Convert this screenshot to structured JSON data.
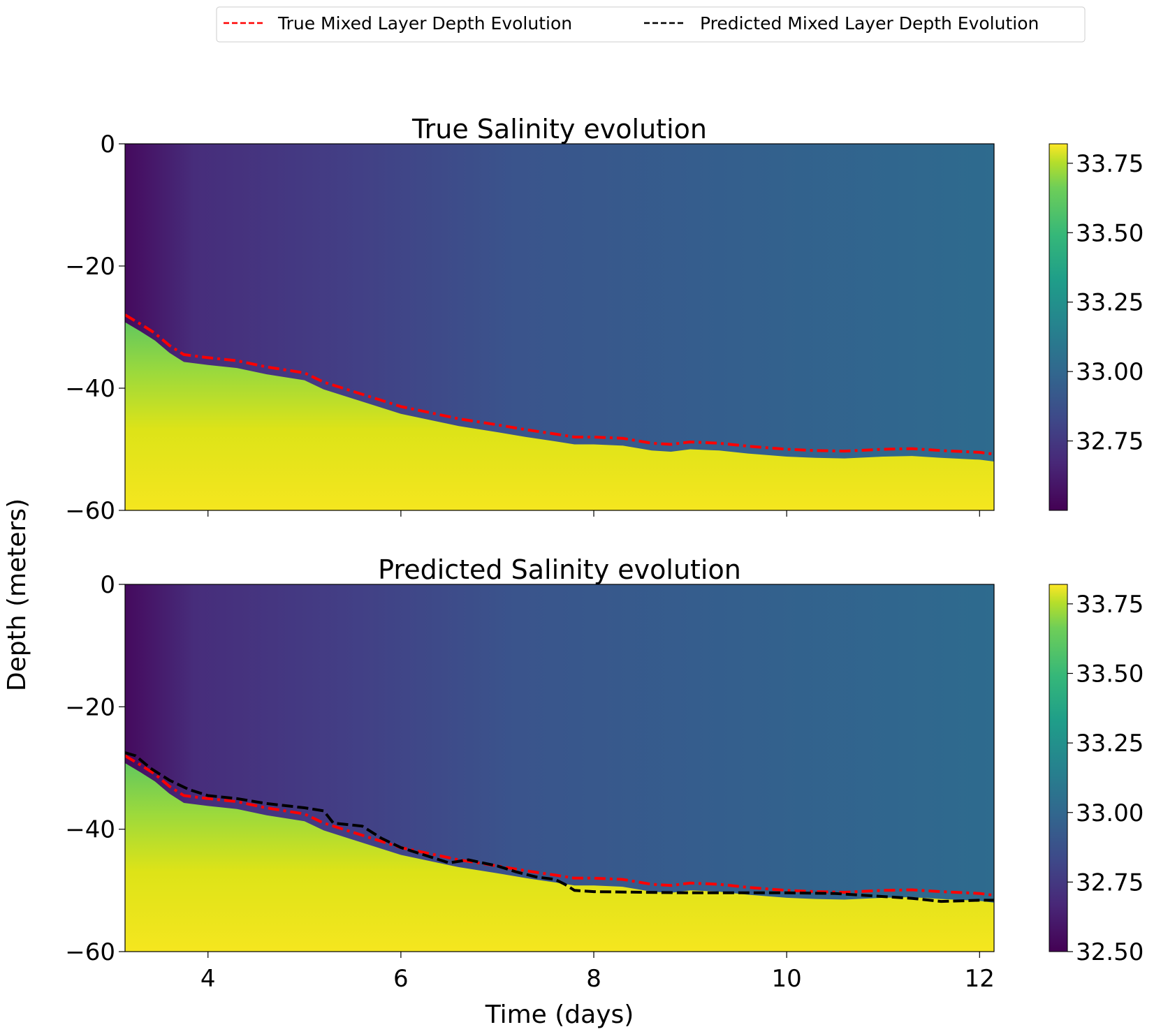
{
  "legend": {
    "items": [
      {
        "label": "True Mixed Layer Depth Evolution",
        "color": "#ff0000",
        "style": "dashed"
      },
      {
        "label": "Predicted Mixed Layer Depth Evolution",
        "color": "#000000",
        "style": "dashed"
      }
    ],
    "placement": "top-center"
  },
  "shared": {
    "xlabel": "Time (days)",
    "ylabel": "Depth (meters)",
    "xticks": [
      "4",
      "6",
      "8",
      "10",
      "12"
    ],
    "yticks": [
      "0",
      "−20",
      "−40",
      "−60"
    ],
    "colormap": "viridis"
  },
  "colors": {
    "true_mld": "#ff0000",
    "pred_mld": "#000000"
  },
  "chart_data": [
    {
      "type": "heatmap",
      "title": "True Salinity evolution",
      "xlabel": "",
      "ylabel": "Depth (meters)",
      "xlim": [
        3.14,
        12.15
      ],
      "ylim": [
        -60,
        0
      ],
      "colorbar": {
        "vmin": 32.5,
        "vmax": 33.82,
        "ticks": [
          "32.75",
          "33.00",
          "33.25",
          "33.50",
          "33.75"
        ]
      },
      "series": [
        {
          "name": "True Mixed Layer Depth Evolution",
          "x": [
            3.14,
            3.3,
            3.45,
            3.6,
            3.75,
            4.0,
            4.3,
            4.6,
            5.0,
            5.2,
            5.5,
            5.8,
            6.0,
            6.3,
            6.6,
            7.0,
            7.3,
            7.6,
            7.8,
            8.0,
            8.3,
            8.6,
            8.8,
            9.0,
            9.3,
            9.6,
            10.0,
            10.3,
            10.6,
            11.0,
            11.3,
            11.6,
            12.0,
            12.15
          ],
          "y": [
            -28,
            -29.5,
            -31,
            -33,
            -34.5,
            -35,
            -35.5,
            -36.5,
            -37.5,
            -39,
            -40.5,
            -42,
            -43,
            -44,
            -45,
            -46,
            -46.8,
            -47.5,
            -48,
            -48,
            -48.2,
            -49,
            -49.2,
            -48.8,
            -49,
            -49.5,
            -50,
            -50.2,
            -50.3,
            -50,
            -49.9,
            -50.2,
            -50.5,
            -50.8
          ]
        }
      ]
    },
    {
      "type": "heatmap",
      "title": "Predicted Salinity evolution",
      "xlabel": "Time (days)",
      "ylabel": "Depth (meters)",
      "xlim": [
        3.14,
        12.15
      ],
      "ylim": [
        -60,
        0
      ],
      "colorbar": {
        "vmin": 32.5,
        "vmax": 33.82,
        "ticks": [
          "32.50",
          "32.75",
          "33.00",
          "33.25",
          "33.50",
          "33.75"
        ]
      },
      "series": [
        {
          "name": "True Mixed Layer Depth Evolution",
          "x": [
            3.14,
            3.3,
            3.45,
            3.6,
            3.75,
            4.0,
            4.3,
            4.6,
            5.0,
            5.2,
            5.5,
            5.8,
            6.0,
            6.3,
            6.6,
            7.0,
            7.3,
            7.6,
            7.8,
            8.0,
            8.3,
            8.6,
            8.8,
            9.0,
            9.3,
            9.6,
            10.0,
            10.3,
            10.6,
            11.0,
            11.3,
            11.6,
            12.0,
            12.15
          ],
          "y": [
            -28,
            -29.5,
            -31,
            -33,
            -34.5,
            -35,
            -35.5,
            -36.5,
            -37.5,
            -39,
            -40.5,
            -42,
            -43,
            -44,
            -45,
            -46,
            -46.8,
            -47.5,
            -48,
            -48,
            -48.2,
            -49,
            -49.2,
            -48.8,
            -49,
            -49.5,
            -50,
            -50.2,
            -50.3,
            -50,
            -49.9,
            -50.2,
            -50.5,
            -50.8
          ]
        },
        {
          "name": "Predicted Mixed Layer Depth Evolution",
          "x": [
            3.14,
            3.25,
            3.4,
            3.6,
            3.8,
            4.0,
            4.3,
            4.6,
            5.0,
            5.2,
            5.3,
            5.6,
            5.8,
            6.0,
            6.3,
            6.5,
            6.7,
            7.0,
            7.2,
            7.4,
            7.6,
            7.7,
            7.8,
            8.0,
            8.5,
            9.0,
            9.5,
            10.0,
            10.5,
            11.0,
            11.3,
            11.6,
            12.0,
            12.15
          ],
          "y": [
            -27.5,
            -28,
            -30,
            -32,
            -33.5,
            -34.5,
            -35,
            -35.8,
            -36.5,
            -37,
            -39,
            -39.5,
            -41.5,
            -43,
            -44.5,
            -45.5,
            -45,
            -46,
            -47,
            -47.8,
            -48.2,
            -49,
            -50,
            -50.2,
            -50.3,
            -50.4,
            -50.4,
            -50.4,
            -50.5,
            -51,
            -51.3,
            -51.8,
            -51.6,
            -51.6
          ]
        }
      ]
    }
  ]
}
